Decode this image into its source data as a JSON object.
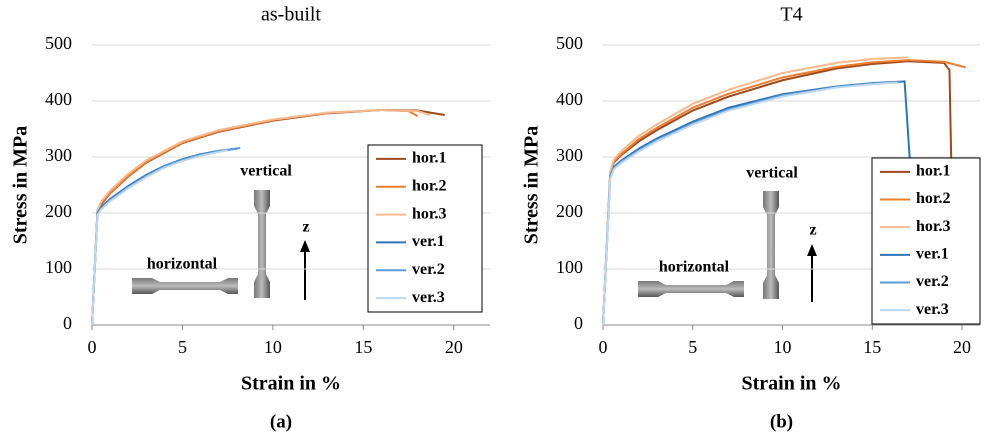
{
  "chart_data": [
    {
      "type": "line",
      "title": "as-built",
      "xlabel": "Strain in %",
      "ylabel": "Stress in MPa",
      "caption": "(a)",
      "xlim": [
        0,
        22
      ],
      "xticks": [
        0,
        5,
        10,
        15,
        20
      ],
      "ylim": [
        0,
        500
      ],
      "yticks": [
        0,
        100,
        200,
        300,
        400,
        500
      ],
      "grid": true,
      "legend": "lower right",
      "annotations": [
        "horizontal",
        "vertical",
        "z"
      ],
      "series": [
        {
          "name": "hor.1",
          "color": "#9e4a1c",
          "x": [
            0,
            0.3,
            0.5,
            1,
            2,
            3,
            5,
            7,
            10,
            13,
            16,
            18,
            19.5
          ],
          "values": [
            0,
            200,
            215,
            235,
            265,
            290,
            325,
            345,
            365,
            378,
            384,
            383,
            375
          ]
        },
        {
          "name": "hor.2",
          "color": "#ed7d31",
          "x": [
            0,
            0.3,
            0.5,
            1,
            2,
            3,
            5,
            7,
            10,
            13,
            16,
            17.5,
            18
          ],
          "values": [
            0,
            202,
            217,
            236,
            266,
            291,
            326,
            346,
            366,
            379,
            384,
            382,
            373
          ]
        },
        {
          "name": "hor.3",
          "color": "#f8b98e",
          "x": [
            0,
            0.3,
            0.5,
            1,
            2,
            3,
            5,
            7,
            10,
            13,
            16,
            18,
            18.7
          ],
          "values": [
            0,
            205,
            220,
            240,
            270,
            294,
            328,
            348,
            367,
            379,
            384,
            382,
            375
          ]
        },
        {
          "name": "ver.1",
          "color": "#2e75b6",
          "x": [
            0,
            0.3,
            0.5,
            1,
            2,
            3,
            4,
            5,
            6,
            7,
            8
          ],
          "values": [
            0,
            200,
            210,
            225,
            248,
            268,
            284,
            296,
            305,
            311,
            315
          ]
        },
        {
          "name": "ver.2",
          "color": "#5b9bd5",
          "x": [
            0,
            0.3,
            0.5,
            1,
            2,
            3,
            4,
            5,
            6,
            7,
            8.2
          ],
          "values": [
            0,
            198,
            208,
            223,
            246,
            266,
            283,
            295,
            304,
            310,
            316
          ]
        },
        {
          "name": "ver.3",
          "color": "#bdd7ee",
          "x": [
            0,
            0.3,
            0.5,
            1,
            2,
            3,
            4,
            5,
            6,
            7,
            7.5
          ],
          "values": [
            0,
            196,
            206,
            221,
            244,
            264,
            281,
            293,
            302,
            309,
            312
          ]
        }
      ]
    },
    {
      "type": "line",
      "title": "T4",
      "xlabel": "Strain in %",
      "ylabel": "Stress in MPa",
      "caption": "(b)",
      "xlim": [
        0,
        21
      ],
      "xticks": [
        0,
        5,
        10,
        15,
        20
      ],
      "ylim": [
        0,
        500
      ],
      "yticks": [
        0,
        100,
        200,
        300,
        400,
        500
      ],
      "grid": true,
      "legend": "lower right",
      "annotations": [
        "horizontal",
        "vertical",
        "z"
      ],
      "series": [
        {
          "name": "hor.1",
          "color": "#9e4a1c",
          "x": [
            0,
            0.4,
            0.6,
            1,
            2,
            3,
            5,
            7,
            10,
            13,
            15,
            17,
            19,
            19.3,
            19.4
          ],
          "values": [
            0,
            270,
            290,
            303,
            328,
            348,
            383,
            408,
            437,
            458,
            466,
            471,
            468,
            455,
            290
          ]
        },
        {
          "name": "hor.2",
          "color": "#ed7d31",
          "x": [
            0,
            0.4,
            0.6,
            1,
            2,
            3,
            5,
            7,
            10,
            13,
            15,
            17,
            19,
            20.2
          ],
          "values": [
            0,
            272,
            292,
            305,
            332,
            352,
            388,
            413,
            442,
            461,
            469,
            473,
            470,
            460
          ]
        },
        {
          "name": "hor.3",
          "color": "#f8b98e",
          "x": [
            0,
            0.4,
            0.6,
            1,
            2,
            3,
            5,
            7,
            10,
            13,
            15,
            17
          ],
          "values": [
            0,
            274,
            295,
            310,
            338,
            358,
            395,
            420,
            450,
            468,
            475,
            478
          ]
        },
        {
          "name": "ver.1",
          "color": "#2e75b6",
          "x": [
            0,
            0.4,
            0.6,
            1,
            2,
            3,
            5,
            7,
            10,
            13,
            15,
            16.8,
            17.1
          ],
          "values": [
            0,
            265,
            282,
            293,
            315,
            333,
            363,
            388,
            412,
            426,
            432,
            435,
            290
          ]
        },
        {
          "name": "ver.2",
          "color": "#5b9bd5",
          "x": [
            0,
            0.4,
            0.6,
            1,
            2,
            3,
            5,
            7,
            10,
            13,
            15,
            16.6
          ],
          "values": [
            0,
            263,
            280,
            291,
            312,
            330,
            360,
            385,
            410,
            425,
            431,
            434
          ]
        },
        {
          "name": "ver.3",
          "color": "#bdd7ee",
          "x": [
            0,
            0.4,
            0.6,
            1,
            2,
            3,
            5,
            7,
            10,
            13,
            15,
            16.4
          ],
          "values": [
            0,
            261,
            278,
            289,
            310,
            328,
            358,
            383,
            408,
            424,
            430,
            433
          ]
        }
      ]
    }
  ]
}
